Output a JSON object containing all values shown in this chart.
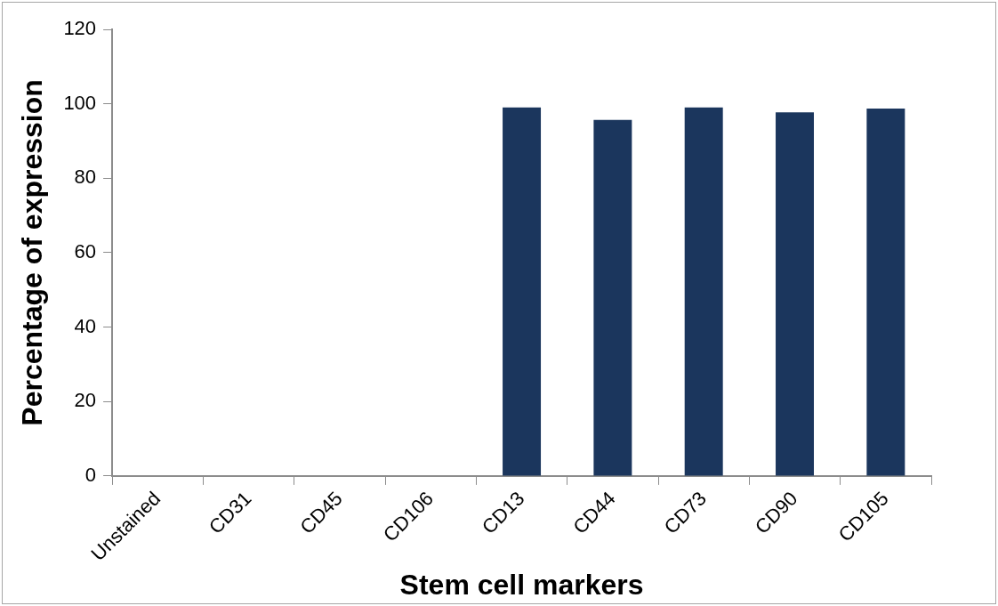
{
  "chart_data": {
    "type": "bar",
    "xlabel": "Stem cell markers",
    "ylabel": "Percentage of expression",
    "categories": [
      "Unstained",
      "CD31",
      "CD45",
      "CD106",
      "CD13",
      "CD44",
      "CD73",
      "CD90",
      "CD105"
    ],
    "values": [
      0,
      0,
      0,
      0,
      99,
      95.7,
      99,
      97.7,
      98.7
    ],
    "color": "#1b365d",
    "ylim": [
      0,
      120
    ],
    "yticks": [
      0,
      20,
      40,
      60,
      80,
      100,
      120
    ],
    "grid": false,
    "legend": false
  }
}
